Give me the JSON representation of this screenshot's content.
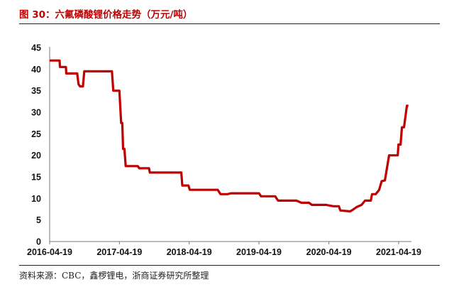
{
  "title": "图 30：六氟磷酸锂价格走势（万元/吨）",
  "source": "资料来源：CBC，鑫椤锂电，浙商证券研究所整理",
  "chart_data": {
    "type": "line",
    "title": "图 30：六氟磷酸锂价格走势（万元/吨）",
    "xlabel": "",
    "ylabel": "",
    "ylim": [
      0,
      45
    ],
    "yticks": [
      "0",
      "5",
      "10",
      "15",
      "20",
      "25",
      "30",
      "35",
      "40",
      "45"
    ],
    "xlim": [
      "2016-04-19",
      "2021-06-20"
    ],
    "xticks": [
      "2016-04-19",
      "2017-04-19",
      "2018-04-19",
      "2019-04-19",
      "2020-04-19",
      "2021-04-19"
    ],
    "grid": false,
    "legend": "none",
    "line_color": "#c00000",
    "series": [
      {
        "points": [
          [
            "2016-04-19",
            42
          ],
          [
            "2016-06-10",
            42
          ],
          [
            "2016-06-12",
            40.5
          ],
          [
            "2016-07-13",
            40.5
          ],
          [
            "2016-07-15",
            39
          ],
          [
            "2016-09-10",
            39
          ],
          [
            "2016-09-17",
            36.5
          ],
          [
            "2016-09-25",
            36
          ],
          [
            "2016-10-10",
            36
          ],
          [
            "2016-10-17",
            39.5
          ],
          [
            "2017-03-11",
            39.5
          ],
          [
            "2017-03-18",
            35
          ],
          [
            "2017-04-19",
            35
          ],
          [
            "2017-04-28",
            27.5
          ],
          [
            "2017-05-04",
            27.5
          ],
          [
            "2017-05-08",
            21.5
          ],
          [
            "2017-05-15",
            21.5
          ],
          [
            "2017-05-22",
            17.5
          ],
          [
            "2017-07-24",
            17.5
          ],
          [
            "2017-08-01",
            17
          ],
          [
            "2017-09-21",
            17
          ],
          [
            "2017-09-25",
            16
          ],
          [
            "2018-03-09",
            16
          ],
          [
            "2018-03-14",
            13
          ],
          [
            "2018-04-15",
            13
          ],
          [
            "2018-04-22",
            12
          ],
          [
            "2018-09-15",
            12
          ],
          [
            "2018-09-30",
            11
          ],
          [
            "2018-11-05",
            11
          ],
          [
            "2018-11-24",
            11.2
          ],
          [
            "2019-04-19",
            11.2
          ],
          [
            "2019-04-30",
            10.5
          ],
          [
            "2019-07-13",
            10.5
          ],
          [
            "2019-07-28",
            9.5
          ],
          [
            "2019-11-01",
            9.5
          ],
          [
            "2019-11-27",
            9
          ],
          [
            "2020-01-06",
            9
          ],
          [
            "2020-01-21",
            8.5
          ],
          [
            "2020-04-05",
            8.5
          ],
          [
            "2020-05-12",
            8.2
          ],
          [
            "2020-06-10",
            8.2
          ],
          [
            "2020-06-18",
            7.2
          ],
          [
            "2020-08-08",
            7
          ],
          [
            "2020-08-20",
            7.3
          ],
          [
            "2020-09-11",
            8
          ],
          [
            "2020-10-07",
            8.5
          ],
          [
            "2020-10-25",
            9.5
          ],
          [
            "2020-11-24",
            9.5
          ],
          [
            "2020-12-01",
            11
          ],
          [
            "2020-12-20",
            11
          ],
          [
            "2021-01-07",
            12
          ],
          [
            "2021-01-20",
            14
          ],
          [
            "2021-02-06",
            14.2
          ],
          [
            "2021-02-28",
            20
          ],
          [
            "2021-04-14",
            20
          ],
          [
            "2021-04-18",
            22.5
          ],
          [
            "2021-04-29",
            22.5
          ],
          [
            "2021-05-06",
            26.5
          ],
          [
            "2021-05-17",
            26.5
          ],
          [
            "2021-06-01",
            31.5
          ],
          [
            "2021-06-09",
            31.5
          ]
        ]
      }
    ]
  }
}
